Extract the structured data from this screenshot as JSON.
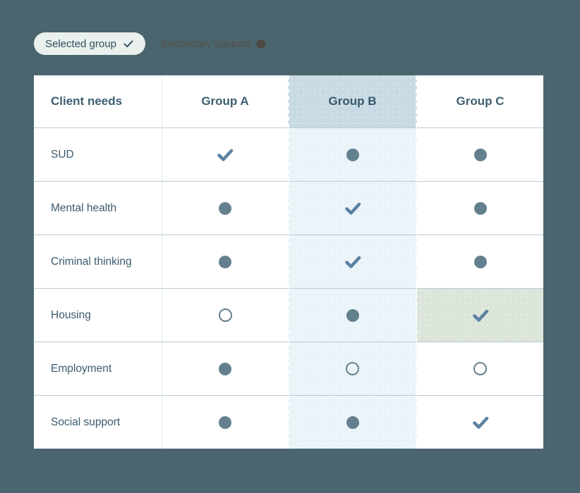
{
  "colors": {
    "page_bg": "#4b656e",
    "selected_col_header_bg": "#c8dae3",
    "selected_col_cell_bg": "#eaf4f8",
    "highlight_cell_bg": "#dce5da",
    "check_icon": "#5c82a2",
    "dot_icon": "#64808f",
    "header_text": "#3d5f72",
    "label_text": "#3b5a6e"
  },
  "legend": {
    "selected": {
      "label": "Selected group",
      "icon": "check-icon"
    },
    "secondary": {
      "label": "Secondary support",
      "icon": "dot-icon"
    }
  },
  "table": {
    "header": {
      "needs_label": "Client needs",
      "groups": [
        "Group A",
        "Group B",
        "Group C"
      ]
    },
    "selected_group": "Group B",
    "selected_group_index": 1,
    "rows": [
      {
        "label": "SUD",
        "cells": [
          "check",
          "dot",
          "dot"
        ]
      },
      {
        "label": "Mental health",
        "cells": [
          "dot",
          "check",
          "dot"
        ]
      },
      {
        "label": "Criminal thinking",
        "cells": [
          "dot",
          "check",
          "dot"
        ]
      },
      {
        "label": "Housing",
        "cells": [
          "circle",
          "dot",
          "check"
        ],
        "highlight_cell_index": 2
      },
      {
        "label": "Employment",
        "cells": [
          "dot",
          "circle",
          "circle"
        ]
      },
      {
        "label": "Social support",
        "cells": [
          "dot",
          "dot",
          "check"
        ]
      }
    ]
  }
}
